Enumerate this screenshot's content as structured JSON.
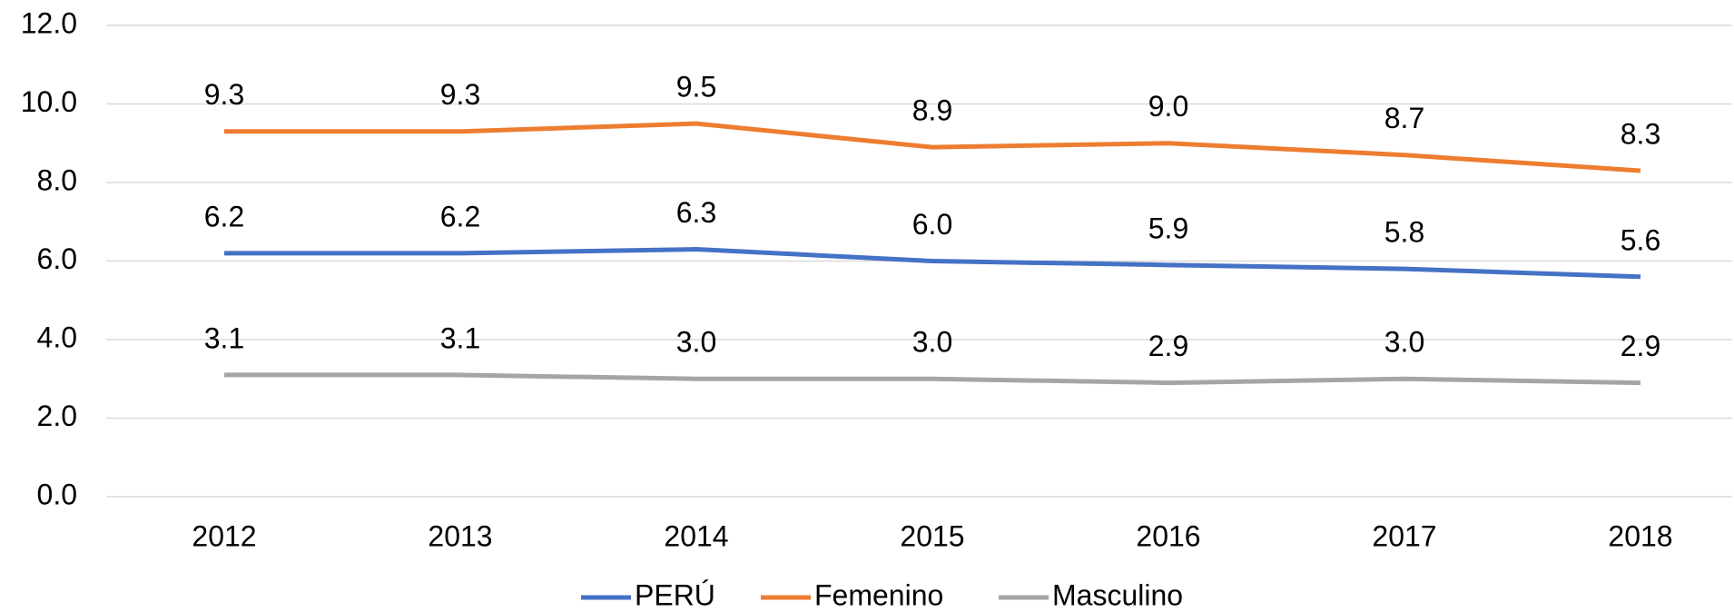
{
  "chart_data": {
    "type": "line",
    "categories": [
      "2012",
      "2013",
      "2014",
      "2015",
      "2016",
      "2017",
      "2018"
    ],
    "series": [
      {
        "name": "PERÚ",
        "color": "#4472c4",
        "values": [
          6.2,
          6.2,
          6.3,
          6.0,
          5.9,
          5.8,
          5.6
        ],
        "value_labels": [
          "6.2",
          "6.2",
          "6.3",
          "6.0",
          "5.9",
          "5.8",
          "5.6"
        ]
      },
      {
        "name": "Femenino",
        "color": "#ed7d31",
        "values": [
          9.3,
          9.3,
          9.5,
          8.9,
          9.0,
          8.7,
          8.3
        ],
        "value_labels": [
          "9.3",
          "9.3",
          "9.5",
          "8.9",
          "9.0",
          "8.7",
          "8.3"
        ]
      },
      {
        "name": "Masculino",
        "color": "#a5a5a5",
        "values": [
          3.1,
          3.1,
          3.0,
          3.0,
          2.9,
          3.0,
          2.9
        ],
        "value_labels": [
          "3.1",
          "3.1",
          "3.0",
          "3.0",
          "2.9",
          "3.0",
          "2.9"
        ]
      }
    ],
    "ylim": [
      0,
      12
    ],
    "yticks": [
      {
        "value": 0,
        "label": "0.0"
      },
      {
        "value": 2,
        "label": "2.0"
      },
      {
        "value": 4,
        "label": "4.0"
      },
      {
        "value": 6,
        "label": "6.0"
      },
      {
        "value": 8,
        "label": "8.0"
      },
      {
        "value": 10,
        "label": "10.0"
      },
      {
        "value": 12,
        "label": "12.0"
      }
    ],
    "grid": true,
    "legend": "bottom"
  }
}
